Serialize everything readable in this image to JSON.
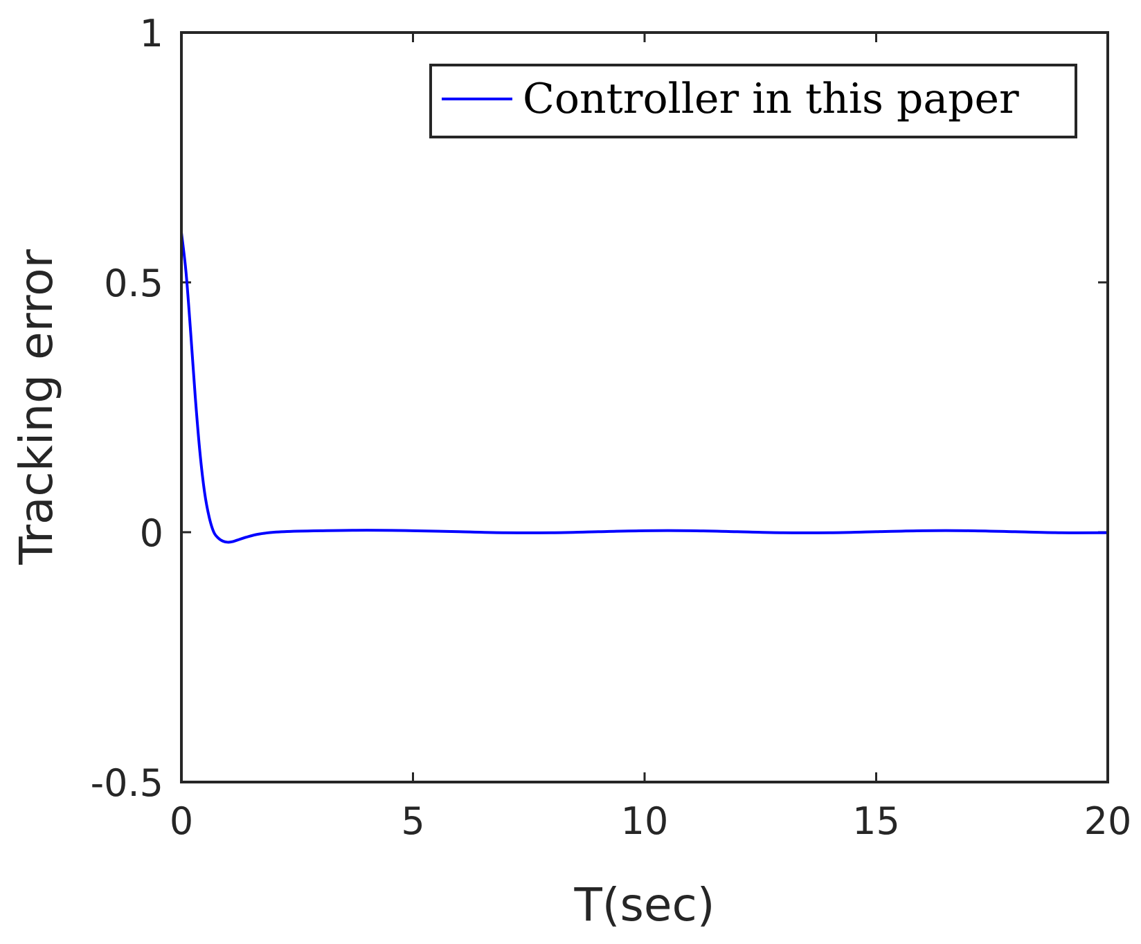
{
  "chart_data": {
    "type": "line",
    "xlabel": "T(sec)",
    "ylabel": "Tracking error",
    "xlim": [
      0,
      20
    ],
    "ylim": [
      -0.5,
      1
    ],
    "xticks": [
      "0",
      "5",
      "10",
      "15",
      "20"
    ],
    "yticks": [
      "-0.5",
      "0",
      "0.5",
      "1"
    ],
    "legend_position": "top-right",
    "grid": false,
    "series": [
      {
        "name": "Controller in this paper",
        "color": "#0000ff",
        "x": [
          0,
          0.1,
          0.2,
          0.3,
          0.4,
          0.5,
          0.6,
          0.7,
          0.8,
          0.9,
          1.0,
          1.1,
          1.2,
          1.4,
          1.6,
          1.8,
          2.0,
          2.5,
          3,
          4,
          5,
          6,
          7,
          8,
          9,
          10,
          11,
          12,
          13,
          14,
          15,
          16,
          17,
          18,
          19,
          20
        ],
        "y": [
          0.6,
          0.52,
          0.4,
          0.27,
          0.16,
          0.08,
          0.03,
          0.0,
          -0.012,
          -0.018,
          -0.02,
          -0.019,
          -0.016,
          -0.01,
          -0.005,
          -0.002,
          0.0,
          0.002,
          0.003,
          0.004,
          0.003,
          0.001,
          -0.001,
          -0.001,
          0.001,
          0.003,
          0.003,
          0.001,
          -0.001,
          -0.001,
          0.001,
          0.003,
          0.003,
          0.001,
          -0.001,
          -0.001
        ]
      }
    ]
  }
}
